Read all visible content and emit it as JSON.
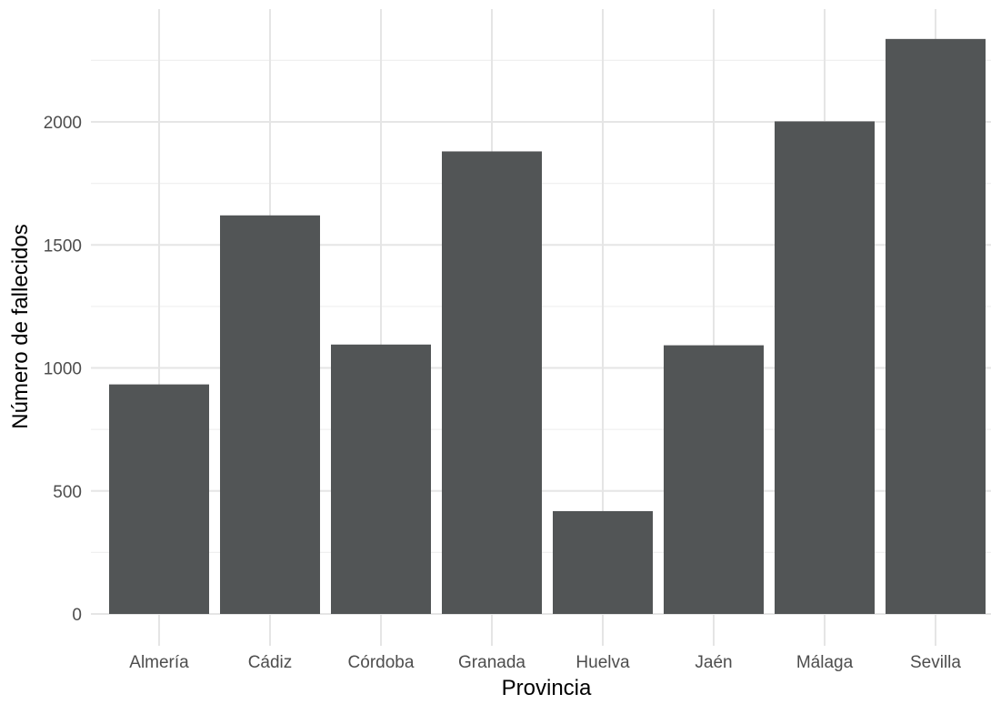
{
  "chart_data": {
    "type": "bar",
    "title": "",
    "xlabel": "Provincia",
    "ylabel": "Número de fallecidos",
    "categories": [
      "Almería",
      "Cádiz",
      "Córdoba",
      "Granada",
      "Huelva",
      "Jaén",
      "Málaga",
      "Sevilla"
    ],
    "values": [
      933,
      1620,
      1095,
      1880,
      418,
      1092,
      2002,
      2337
    ],
    "ylim": [
      0,
      2450
    ],
    "yticks": [
      0,
      500,
      1000,
      1500,
      2000
    ],
    "yticks_minor": [
      250,
      750,
      1250,
      1750,
      2250
    ],
    "grid": true,
    "legend": "none",
    "colors": {
      "bar": "#525556",
      "grid_major": "#e5e5e5",
      "grid_minor": "#f0f0f0",
      "tick_text": "#4d4d4d",
      "title_text": "#000000"
    }
  }
}
